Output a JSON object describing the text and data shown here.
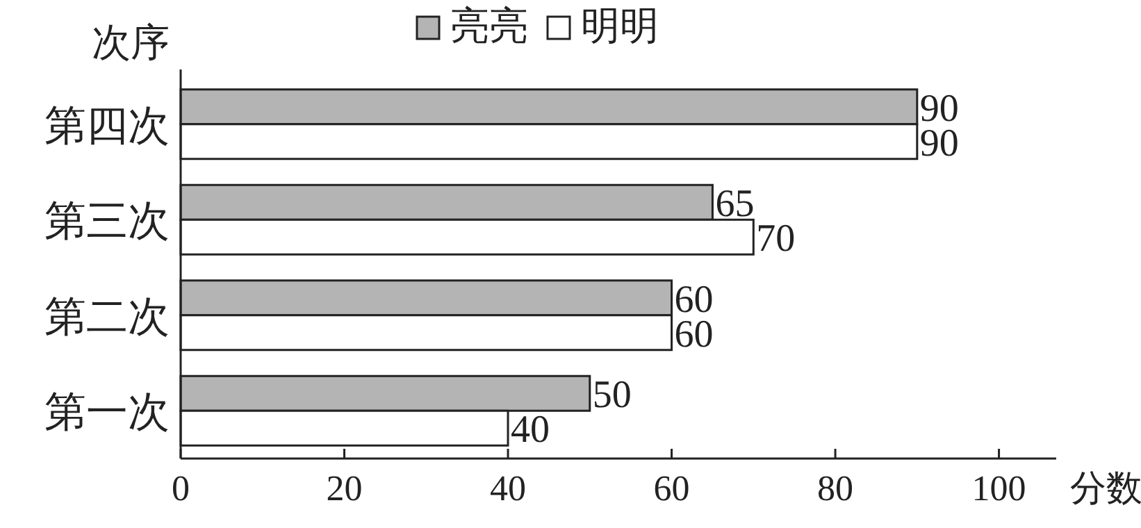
{
  "chart_data": {
    "type": "bar",
    "orientation": "horizontal",
    "categories": [
      "第四次",
      "第三次",
      "第二次",
      "第一次"
    ],
    "series": [
      {
        "name": "亮亮",
        "color": "#b4b4b4",
        "values": [
          90,
          65,
          60,
          50
        ]
      },
      {
        "name": "明明",
        "color": "#ffffff",
        "values": [
          90,
          70,
          60,
          40
        ]
      }
    ],
    "xlim": [
      0,
      107
    ],
    "xticks": [
      0,
      20,
      40,
      60,
      80,
      100
    ],
    "xlabel": "分数",
    "ylabel": "次序",
    "legend": "top",
    "data_labels": true
  }
}
